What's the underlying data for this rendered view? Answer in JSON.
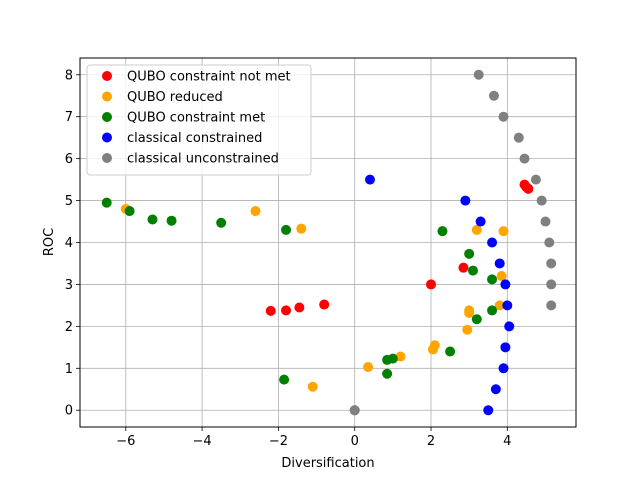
{
  "chart_data": {
    "type": "scatter",
    "xlabel": "Diversification",
    "ylabel": "ROC",
    "xlim": [
      -7.2,
      5.8
    ],
    "ylim": [
      -0.4,
      8.4
    ],
    "xticks": [
      -6,
      -4,
      -2,
      0,
      2,
      4
    ],
    "xtick_labels": [
      "−6",
      "−4",
      "−2",
      "0",
      "2",
      "4"
    ],
    "yticks": [
      0,
      1,
      2,
      3,
      4,
      5,
      6,
      7,
      8
    ],
    "ytick_labels": [
      "0",
      "1",
      "2",
      "3",
      "4",
      "5",
      "6",
      "7",
      "8"
    ],
    "grid": true,
    "legend_position": "upper-left",
    "series": [
      {
        "name": "QUBO constraint not met",
        "color": "#ff0000",
        "points": [
          [
            2.0,
            3.0
          ],
          [
            2.85,
            3.4
          ],
          [
            4.45,
            5.38
          ],
          [
            4.5,
            5.32
          ],
          [
            4.55,
            5.28
          ],
          [
            -0.8,
            2.52
          ],
          [
            -1.45,
            2.45
          ],
          [
            -1.8,
            2.38
          ],
          [
            -2.2,
            2.37
          ]
        ]
      },
      {
        "name": "QUBO reduced",
        "color": "#ffa500",
        "points": [
          [
            -6.0,
            4.8
          ],
          [
            -2.6,
            4.75
          ],
          [
            -1.4,
            4.33
          ],
          [
            3.2,
            4.3
          ],
          [
            3.9,
            4.27
          ],
          [
            3.85,
            3.2
          ],
          [
            3.0,
            2.38
          ],
          [
            3.0,
            2.32
          ],
          [
            3.8,
            2.5
          ],
          [
            2.95,
            1.92
          ],
          [
            2.1,
            1.55
          ],
          [
            2.05,
            1.45
          ],
          [
            1.2,
            1.28
          ],
          [
            0.35,
            1.03
          ],
          [
            -1.1,
            0.56
          ]
        ]
      },
      {
        "name": "QUBO constraint met",
        "color": "#008000",
        "points": [
          [
            -6.5,
            4.95
          ],
          [
            -5.9,
            4.75
          ],
          [
            -5.3,
            4.55
          ],
          [
            -4.8,
            4.52
          ],
          [
            -3.5,
            4.47
          ],
          [
            -1.8,
            4.3
          ],
          [
            2.3,
            4.27
          ],
          [
            3.0,
            3.73
          ],
          [
            3.1,
            3.33
          ],
          [
            3.6,
            3.12
          ],
          [
            3.6,
            2.38
          ],
          [
            3.2,
            2.17
          ],
          [
            2.5,
            1.4
          ],
          [
            1.0,
            1.23
          ],
          [
            0.85,
            1.2
          ],
          [
            0.85,
            0.87
          ],
          [
            -1.85,
            0.73
          ],
          [
            0.0,
            0.0
          ]
        ]
      },
      {
        "name": "classical constrained",
        "color": "#0000ff",
        "points": [
          [
            0.4,
            5.5
          ],
          [
            2.9,
            5.0
          ],
          [
            3.3,
            4.5
          ],
          [
            3.6,
            4.0
          ],
          [
            3.8,
            3.5
          ],
          [
            3.95,
            3.0
          ],
          [
            4.0,
            2.5
          ],
          [
            4.05,
            2.0
          ],
          [
            3.95,
            1.5
          ],
          [
            3.9,
            1.0
          ],
          [
            3.7,
            0.5
          ],
          [
            3.5,
            0.0
          ]
        ]
      },
      {
        "name": "classical unconstrained",
        "color": "#808080",
        "points": [
          [
            3.25,
            8.0
          ],
          [
            3.65,
            7.5
          ],
          [
            3.9,
            7.0
          ],
          [
            4.3,
            6.5
          ],
          [
            4.45,
            6.0
          ],
          [
            4.75,
            5.5
          ],
          [
            4.9,
            5.0
          ],
          [
            5.0,
            4.5
          ],
          [
            5.1,
            4.0
          ],
          [
            5.15,
            3.5
          ],
          [
            5.15,
            3.0
          ],
          [
            5.15,
            2.5
          ],
          [
            0.0,
            0.0
          ]
        ]
      }
    ]
  }
}
